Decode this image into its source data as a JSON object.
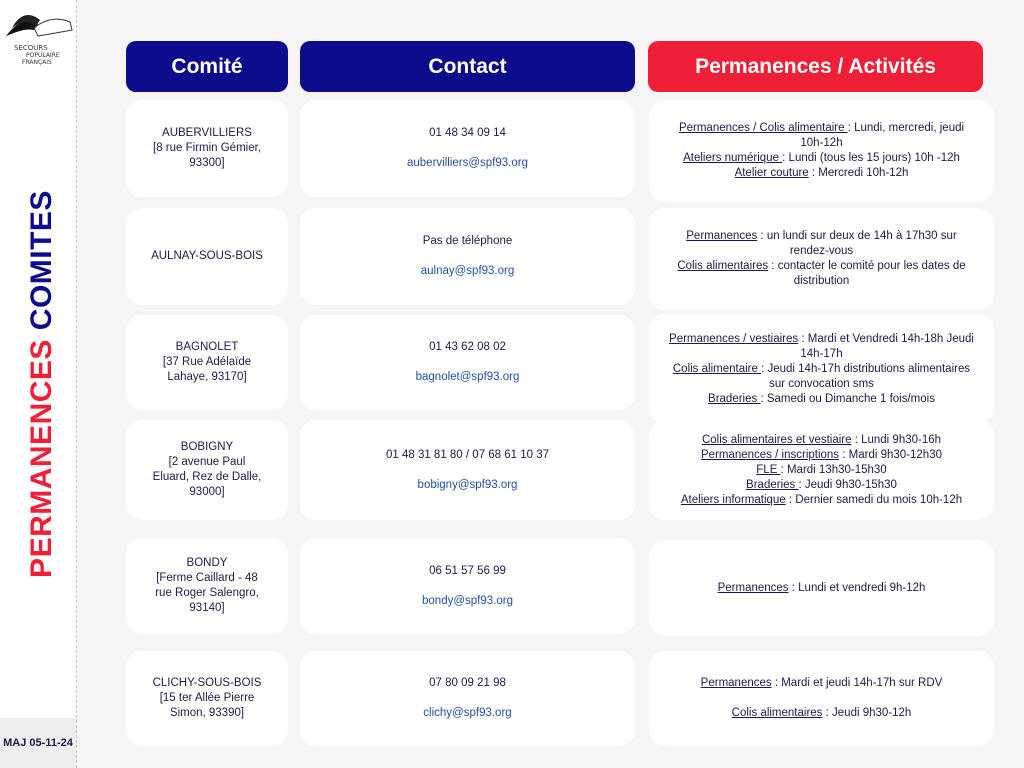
{
  "logo_text": "SECOURS POPULAIRE FRANÇAIS",
  "sidebar": {
    "title_red": "PERMANENCES",
    "title_blue": "COMITES",
    "update": "MAJ 05-11-24"
  },
  "headers": {
    "comite": "Comité",
    "contact": "Contact",
    "activities": "Permanences / Activités"
  },
  "colors": {
    "navy": "#0d0c8c",
    "red": "#ee1f36",
    "email": "#1f4fa8"
  },
  "rows": [
    {
      "comite": [
        "AUBERVILLIERS",
        "[8 rue Firmin Gémier,",
        "93300]"
      ],
      "phone": "01 48 34 09 14",
      "email": "aubervilliers@spf93.org",
      "activities": [
        {
          "label": "Permanences / Colis alimentaire ",
          "text": ": Lundi, mercredi, jeudi 10h-12h"
        },
        {
          "label": "Ateliers numérique ",
          "text": ": Lundi (tous les 15 jours) 10h -12h"
        },
        {
          "label": "Atelier couture",
          "text": " : Mercredi 10h-12h"
        }
      ]
    },
    {
      "comite": [
        "AULNAY-SOUS-BOIS"
      ],
      "phone": "Pas de téléphone",
      "email": "aulnay@spf93.org",
      "activities": [
        {
          "label": "Permanences",
          "text": " : un lundi sur deux de 14h à 17h30 sur rendez-vous"
        },
        {
          "label": "Colis alimentaires",
          "text": " : contacter le comité pour les dates de distribution"
        }
      ]
    },
    {
      "comite": [
        "BAGNOLET",
        "[37 Rue Adélaïde",
        "Lahaye, 93170]"
      ],
      "phone": "01 43 62 08 02",
      "email": "bagnolet@spf93.org",
      "activities": [
        {
          "label": "Permanences / vestiaires",
          "text": " : Mardi et Vendredi 14h-18h Jeudi 14h-17h"
        },
        {
          "label": "Colis alimentaire ",
          "text": ": Jeudi 14h-17h distributions alimentaires sur convocation sms"
        },
        {
          "label": "Braderies ",
          "text": ": Samedi ou Dimanche 1 fois/mois"
        }
      ]
    },
    {
      "comite": [
        "BOBIGNY",
        "[2 avenue Paul",
        "Eluard, Rez de Dalle,",
        "93000]"
      ],
      "phone": "01 48 31 81 80 / 07 68 61 10 37",
      "email": "bobigny@spf93.org",
      "activities": [
        {
          "label": "Colis alimentaires et vestiaire",
          "text": " : Lundi 9h30-16h"
        },
        {
          "label": "Permanences / inscriptions",
          "text": " : Mardi 9h30-12h30"
        },
        {
          "label": "FLE ",
          "text": ": Mardi 13h30-15h30"
        },
        {
          "label": "Braderies ",
          "text": ": Jeudi 9h30-15h30"
        },
        {
          "label": "Ateliers informatique",
          "text": " : Dernier samedi du mois 10h-12h"
        }
      ]
    },
    {
      "comite": [
        "BONDY",
        "[Ferme Caillard - 48",
        "rue Roger Salengro,",
        "93140]"
      ],
      "phone": "06 51 57 56 99",
      "email": "bondy@spf93.org",
      "activities": [
        {
          "label": "Permanences",
          "text": " : Lundi et vendredi 9h-12h"
        }
      ]
    },
    {
      "comite": [
        "CLICHY-SOUS-BOIS",
        "[15 ter Allée Pierre",
        "Simon, 93390]"
      ],
      "phone": "07 80 09 21 98",
      "email": "clichy@spf93.org",
      "activities": [
        {
          "label": "Permanences",
          "text": " : Mardi et jeudi 14h-17h sur RDV"
        },
        {
          "label": "Colis alimentaires",
          "text": " : Jeudi 9h30-12h"
        }
      ]
    }
  ]
}
